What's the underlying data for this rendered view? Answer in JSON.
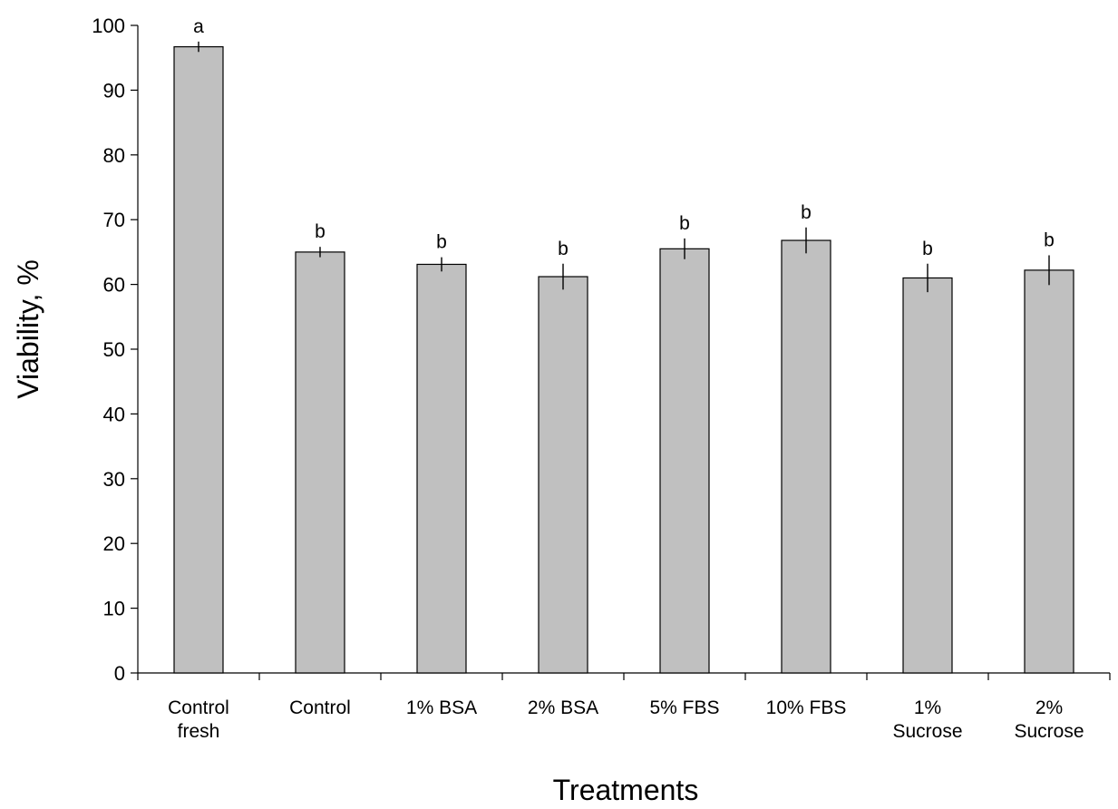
{
  "chart_data": {
    "type": "bar",
    "title": "",
    "xlabel": "Treatments",
    "ylabel": "Viability, %",
    "ylim": [
      0,
      100
    ],
    "yticks": [
      0,
      10,
      20,
      30,
      40,
      50,
      60,
      70,
      80,
      90,
      100
    ],
    "grid": false,
    "legend": "none",
    "categories": [
      [
        "Control",
        "fresh"
      ],
      [
        "Control"
      ],
      [
        "1% BSA"
      ],
      [
        "2% BSA"
      ],
      [
        "5% FBS"
      ],
      [
        "10% FBS"
      ],
      [
        "1%",
        "Sucrose"
      ],
      [
        "2%",
        "Sucrose"
      ]
    ],
    "values": [
      96.7,
      65.0,
      63.1,
      61.2,
      65.5,
      66.8,
      61.0,
      62.2
    ],
    "errors": [
      0.8,
      0.8,
      1.1,
      2.0,
      1.6,
      2.0,
      2.2,
      2.3
    ],
    "significance": [
      "a",
      "b",
      "b",
      "b",
      "b",
      "b",
      "b",
      "b"
    ],
    "bar_color": "#c0c0c0",
    "bar_edge_color": "#000000"
  }
}
